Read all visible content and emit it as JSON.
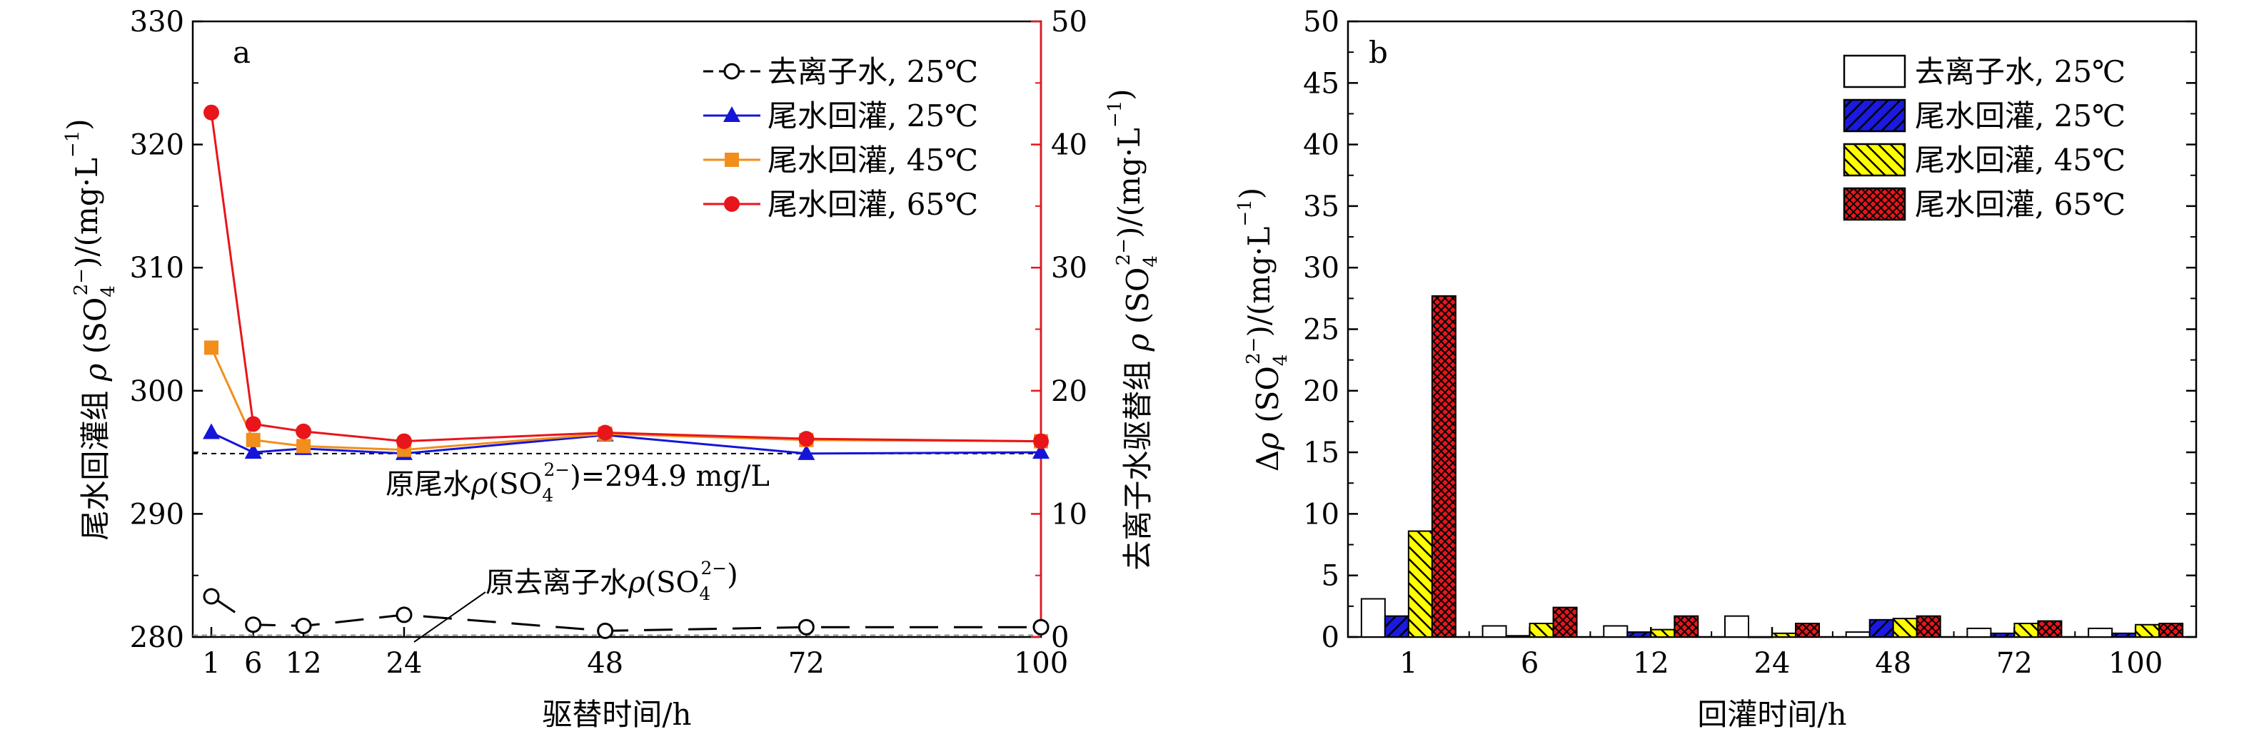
{
  "chart_data": [
    {
      "type": "line",
      "panel_label": "a",
      "xlabel": "驱替时间/h",
      "ylabel_left": [
        "尾水回灌组 ",
        "ρ",
        " (SO",
        "4",
        "2−",
        ")/(mg·L",
        "−1",
        ")"
      ],
      "ylabel_right": [
        "去离子水驱替组 ",
        "ρ",
        " (SO",
        "4",
        "2−",
        ")/(mg·L",
        "−1",
        ")"
      ],
      "x": [
        1,
        6,
        12,
        24,
        48,
        72,
        100
      ],
      "x_ticks": [
        1,
        6,
        12,
        24,
        48,
        72,
        100
      ],
      "xlim": [
        0,
        100
      ],
      "ylim_left": [
        280,
        330
      ],
      "ylim_right": [
        0,
        50
      ],
      "yticks_left": [
        280,
        290,
        300,
        310,
        320,
        330
      ],
      "yticks_right": [
        0,
        10,
        20,
        30,
        40,
        50
      ],
      "series": [
        {
          "name": "去离子水, 25℃",
          "axis": "right",
          "marker": "open-circle",
          "dash": "dashed",
          "color": "#000000",
          "values": [
            3.3,
            1.0,
            0.9,
            1.8,
            0.5,
            0.8,
            0.8
          ]
        },
        {
          "name": "尾水回灌, 25℃",
          "axis": "left",
          "marker": "triangle",
          "dash": "solid",
          "color": "#1515d9",
          "values": [
            296.6,
            295.0,
            295.3,
            294.9,
            296.4,
            294.9,
            295.0
          ]
        },
        {
          "name": "尾水回灌, 45℃",
          "axis": "left",
          "marker": "square",
          "dash": "solid",
          "color": "#f28e1c",
          "values": [
            303.5,
            296.0,
            295.5,
            295.2,
            296.5,
            296.0,
            295.9
          ]
        },
        {
          "name": "尾水回灌, 65℃",
          "axis": "left",
          "marker": "circle",
          "dash": "solid",
          "color": "#e8151b",
          "values": [
            322.6,
            297.3,
            296.7,
            295.9,
            296.6,
            296.1,
            295.9
          ]
        }
      ],
      "ref_lines": [
        {
          "axis": "left",
          "value": 294.9,
          "label_parts": [
            "原尾水",
            "ρ",
            "(SO",
            "4",
            "2−",
            ")=294.9 mg/L"
          ]
        },
        {
          "axis": "right",
          "value": 0.5,
          "label_parts": [
            "原去离子水",
            "ρ",
            "(SO",
            "4",
            "2−",
            ")"
          ]
        }
      ],
      "right_axis_color": "#e8151b"
    },
    {
      "type": "bar",
      "panel_label": "b",
      "xlabel": "回灌时间/h",
      "ylabel": [
        "Δ",
        "ρ",
        " (SO",
        "4",
        "2−",
        ")/(mg·L",
        "−1",
        ")"
      ],
      "categories": [
        "1",
        "6",
        "12",
        "24",
        "48",
        "72",
        "100"
      ],
      "ylim": [
        0,
        50
      ],
      "yticks": [
        0,
        5,
        10,
        15,
        20,
        25,
        30,
        35,
        40,
        45,
        50
      ],
      "series": [
        {
          "name": "去离子水, 25℃",
          "fill": "#ffffff",
          "pattern": "none",
          "values": [
            3.1,
            0.9,
            0.9,
            1.7,
            0.4,
            0.7,
            0.7
          ]
        },
        {
          "name": "尾水回灌, 25℃",
          "fill": "#1a1ae0",
          "pattern": "diagonal",
          "values": [
            1.7,
            0.1,
            0.4,
            0.0,
            1.4,
            0.3,
            0.3
          ]
        },
        {
          "name": "尾水回灌, 45℃",
          "fill": "#ffff00",
          "pattern": "back-diagonal",
          "values": [
            8.6,
            1.1,
            0.6,
            0.3,
            1.5,
            1.1,
            1.0
          ]
        },
        {
          "name": "尾水回灌, 65℃",
          "fill": "#e8151b",
          "pattern": "crosshatch",
          "values": [
            27.7,
            2.4,
            1.7,
            1.1,
            1.7,
            1.3,
            1.1
          ]
        }
      ]
    }
  ]
}
